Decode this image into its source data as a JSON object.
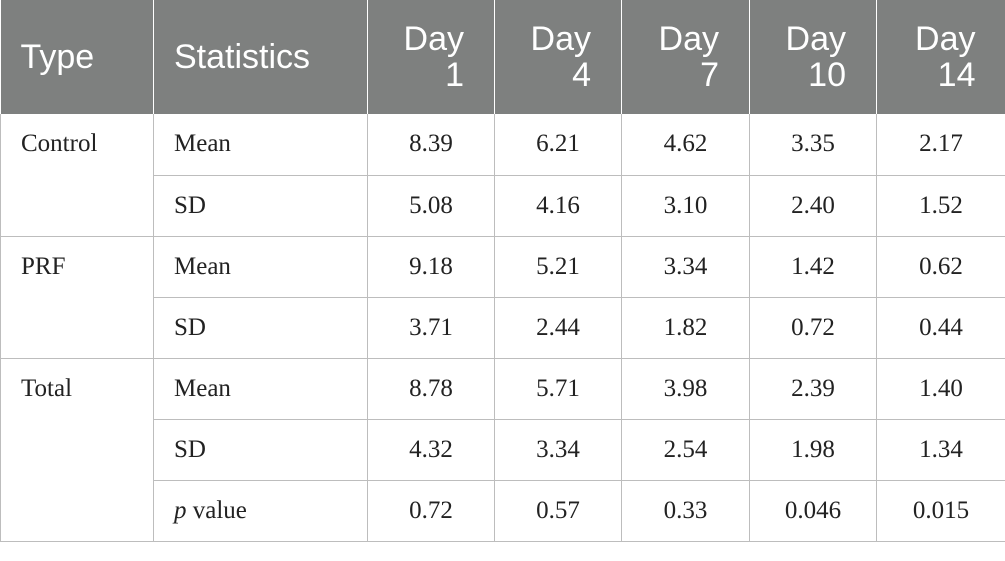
{
  "table": {
    "header": {
      "type": "Type",
      "statistics": "Statistics",
      "days": [
        {
          "line1": "Day",
          "line2": "1"
        },
        {
          "line1": "Day",
          "line2": "4"
        },
        {
          "line1": "Day",
          "line2": "7"
        },
        {
          "line1": "Day",
          "line2": "10"
        },
        {
          "line1": "Day",
          "line2": "14"
        }
      ]
    },
    "groups": [
      {
        "type": "Control",
        "rows": [
          {
            "stat": "Mean",
            "values": [
              "8.39",
              "6.21",
              "4.62",
              "3.35",
              "2.17"
            ]
          },
          {
            "stat": "SD",
            "values": [
              "5.08",
              "4.16",
              "3.10",
              "2.40",
              "1.52"
            ]
          }
        ]
      },
      {
        "type": "PRF",
        "rows": [
          {
            "stat": "Mean",
            "values": [
              "9.18",
              "5.21",
              "3.34",
              "1.42",
              "0.62"
            ]
          },
          {
            "stat": "SD",
            "values": [
              "3.71",
              "2.44",
              "1.82",
              "0.72",
              "0.44"
            ]
          }
        ]
      },
      {
        "type": "Total",
        "rows": [
          {
            "stat": "Mean",
            "values": [
              "8.78",
              "5.71",
              "3.98",
              "2.39",
              "1.40"
            ]
          },
          {
            "stat": "SD",
            "values": [
              "4.32",
              "3.34",
              "2.54",
              "1.98",
              "1.34"
            ]
          },
          {
            "stat_italic": "p",
            "stat": " value",
            "values": [
              "0.72",
              "0.57",
              "0.33",
              "0.046",
              "0.015"
            ]
          }
        ]
      }
    ]
  }
}
